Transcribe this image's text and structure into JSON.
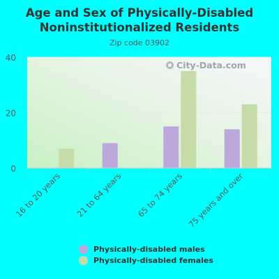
{
  "title_line1": "Age and Sex of Physically-Disabled",
  "title_line2": "Noninstitutionalized Residents",
  "subtitle": "Zip code 03902",
  "watermark": "City-Data.com",
  "colors": {
    "background": "#00FFFF",
    "males": "#BCA8DA",
    "females": "#C5DBA8",
    "axis_text": "#555555"
  },
  "chart_data": {
    "type": "bar",
    "categories": [
      "16 to 20 years",
      "21 to 64 years",
      "65 to 74 years",
      "75 years and over"
    ],
    "series": [
      {
        "name": "Physically-disabled males",
        "values": [
          0,
          9,
          15,
          14
        ]
      },
      {
        "name": "Physically-disabled females",
        "values": [
          7,
          0,
          35,
          23
        ]
      }
    ],
    "ylim": [
      0,
      40
    ],
    "yticks": [
      0,
      20,
      40
    ],
    "grid": true,
    "legend_position": "bottom"
  }
}
